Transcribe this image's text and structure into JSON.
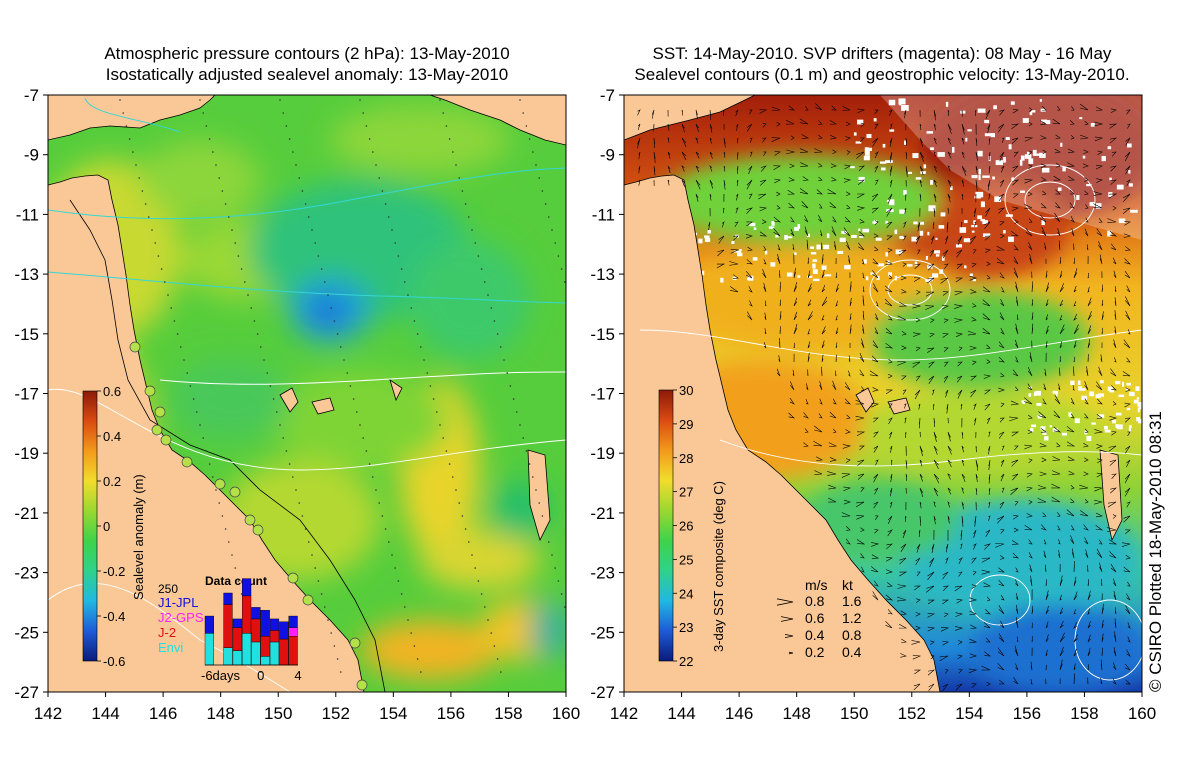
{
  "left_panel": {
    "title_line1": "Atmospheric pressure contours (2 hPa): 13-May-2010",
    "title_line2": "Isostatically adjusted sealevel anomaly: 13-May-2010",
    "colorbar": {
      "label": "Sealevel anomaly (m)",
      "ticks": [
        "0.6",
        "0.4",
        "0.2",
        "0",
        "-0.2",
        "-0.4",
        "-0.6"
      ],
      "tick_values": [
        0.6,
        0.4,
        0.2,
        0,
        -0.2,
        -0.4,
        -0.6
      ],
      "range": [
        -0.6,
        0.6
      ],
      "colors": [
        "#0a1a7a",
        "#1d5bd6",
        "#21b8e3",
        "#2fd28a",
        "#3ed34a",
        "#9ad832",
        "#f2dc2c",
        "#f29a1c",
        "#d94b12",
        "#8a1a08"
      ]
    },
    "data_count": {
      "title": "Data count",
      "max_label": "250",
      "legend": [
        {
          "label": "J1-JPL",
          "color": "#1010e0"
        },
        {
          "label": "J2-GPS",
          "color": "#ff20ff"
        },
        {
          "label": "J-2",
          "color": "#e01010"
        },
        {
          "label": "Envi",
          "color": "#20e0e0"
        }
      ],
      "x_labels": [
        "-6days",
        "0",
        "4"
      ],
      "bars": [
        {
          "day": -6,
          "blue": 60,
          "red": 0,
          "cyan": 110,
          "magenta": 0
        },
        {
          "day": -5,
          "blue": 0,
          "red": 0,
          "cyan": 0,
          "magenta": 0
        },
        {
          "day": -4,
          "blue": 40,
          "red": 150,
          "cyan": 60,
          "magenta": 0
        },
        {
          "day": -3,
          "blue": 30,
          "red": 80,
          "cyan": 50,
          "magenta": 0
        },
        {
          "day": -2,
          "blue": 60,
          "red": 130,
          "cyan": 110,
          "magenta": 0
        },
        {
          "day": -1,
          "blue": 40,
          "red": 80,
          "cyan": 80,
          "magenta": 0
        },
        {
          "day": 0,
          "blue": 90,
          "red": 70,
          "cyan": 30,
          "magenta": 0
        },
        {
          "day": 1,
          "blue": 40,
          "red": 40,
          "cyan": 80,
          "magenta": 0
        },
        {
          "day": 2,
          "blue": 60,
          "red": 90,
          "cyan": 0,
          "magenta": 0
        },
        {
          "day": 3,
          "blue": 40,
          "red": 100,
          "cyan": 0,
          "magenta": 30
        }
      ]
    }
  },
  "right_panel": {
    "title_line1": "SST: 14-May-2010. SVP drifters (magenta): 08 May - 16 May",
    "title_line2": "Sealevel contours (0.1 m) and geostrophic velocity: 13-May-2010.",
    "colorbar": {
      "label": "3-day SST composite (deg C)",
      "ticks": [
        "30",
        "29",
        "28",
        "27",
        "26",
        "25",
        "24",
        "23",
        "22"
      ],
      "tick_values": [
        30,
        29,
        28,
        27,
        26,
        25,
        24,
        23,
        22
      ],
      "range": [
        22,
        30
      ],
      "colors": [
        "#0a1a7a",
        "#1d5bd6",
        "#21b8e3",
        "#2fd28a",
        "#3ed34a",
        "#9ad832",
        "#f2dc2c",
        "#f29a1c",
        "#d94b12",
        "#8a1a08"
      ]
    },
    "speed_legend": {
      "headers": [
        "m/s",
        "kt"
      ],
      "rows": [
        {
          "ms": "0.8",
          "kt": "1.6",
          "scale": 0.8
        },
        {
          "ms": "0.6",
          "kt": "1.2",
          "scale": 0.6
        },
        {
          "ms": "0.4",
          "kt": "0.8",
          "scale": 0.4
        },
        {
          "ms": "0.2",
          "kt": "0.4",
          "scale": 0.2
        }
      ]
    }
  },
  "axes": {
    "lon_labels": [
      "142",
      "144",
      "146",
      "148",
      "150",
      "152",
      "154",
      "156",
      "158",
      "160"
    ],
    "lon_values": [
      142,
      144,
      146,
      148,
      150,
      152,
      154,
      156,
      158,
      160
    ],
    "lat_labels": [
      "-7",
      "-9",
      "-11",
      "-13",
      "-15",
      "-17",
      "-19",
      "-21",
      "-23",
      "-25",
      "-27"
    ],
    "lat_values": [
      -7,
      -9,
      -11,
      -13,
      -15,
      -17,
      -19,
      -21,
      -23,
      -25,
      -27
    ],
    "lon_range": [
      142,
      160
    ],
    "lat_range": [
      -27,
      -7
    ]
  },
  "credit": "© CSIRO Plotted 18-May-2010 08:31",
  "colors": {
    "land": "#fac896",
    "ocean_base": "#56cd3c",
    "ocean_light": "#8cd63a",
    "ocean_yellow": "#e9d92e",
    "ocean_blue": "#2f9ee0",
    "sst_warm": "#a8230c",
    "sst_cool": "#2ab3bf",
    "cloud": "#ffffff",
    "contour": "#ffffff",
    "pressure_contour": "#35d6d6"
  }
}
